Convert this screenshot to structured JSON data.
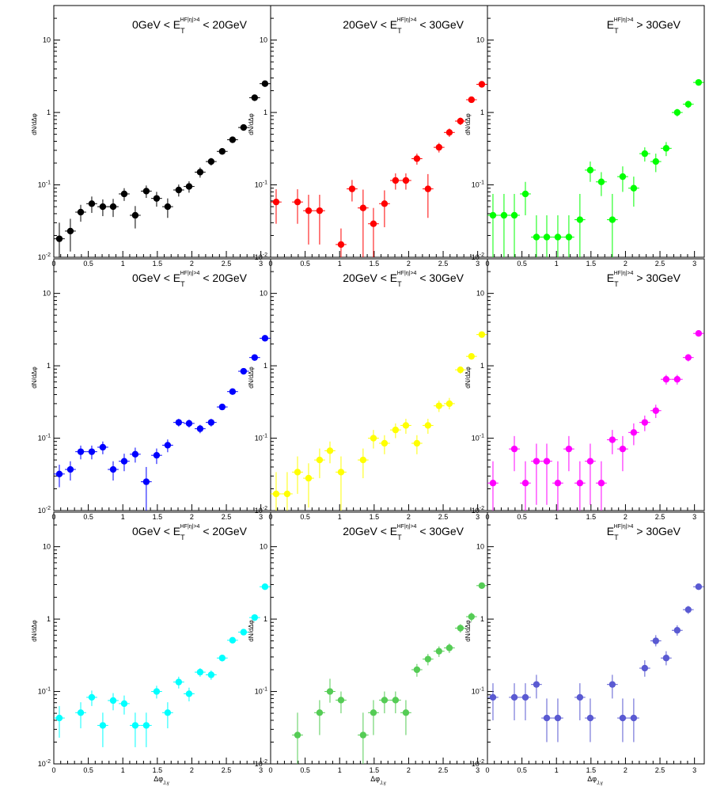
{
  "chart_data": [
    {
      "type": "scatter",
      "title": {
        "prefix": "0GeV < E",
        "sub": "T",
        "sup": "HF|η|>4",
        "suffix": " < 20GeV"
      },
      "ylabel": "dN/dΔφ",
      "xlabel": "",
      "x_sub": "",
      "ylim": [
        0.01,
        30
      ],
      "xlim": [
        0,
        3.14159
      ],
      "log_y": true,
      "color": "#000000",
      "series": [
        {
          "x": [
            0.08,
            0.24,
            0.39,
            0.55,
            0.71,
            0.86,
            1.02,
            1.18,
            1.34,
            1.49,
            1.65,
            1.81,
            1.96,
            2.12,
            2.28,
            2.44,
            2.59,
            2.75,
            2.91,
            3.06
          ],
          "y": [
            0.018,
            0.023,
            0.042,
            0.055,
            0.05,
            0.05,
            0.075,
            0.038,
            0.082,
            0.065,
            0.05,
            0.085,
            0.095,
            0.15,
            0.21,
            0.29,
            0.42,
            0.62,
            1.6,
            2.5
          ],
          "lo": [
            0.006,
            0.012,
            0.031,
            0.041,
            0.037,
            0.036,
            0.06,
            0.025,
            0.066,
            0.05,
            0.035,
            0.069,
            0.078,
            0.126,
            0.185,
            0.263,
            0.39,
            0.58,
            1.5,
            2.35
          ],
          "hi": [
            0.03,
            0.034,
            0.053,
            0.069,
            0.063,
            0.064,
            0.09,
            0.051,
            0.098,
            0.08,
            0.065,
            0.101,
            0.112,
            0.174,
            0.235,
            0.317,
            0.45,
            0.66,
            1.7,
            2.65
          ]
        }
      ]
    },
    {
      "type": "scatter",
      "title": {
        "prefix": "20GeV < E",
        "sub": "T",
        "sup": "HF|η|>4",
        "suffix": " < 30GeV"
      },
      "ylabel": "dN/dΔφ",
      "xlabel": "",
      "x_sub": "",
      "ylim": [
        0.01,
        30
      ],
      "xlim": [
        0,
        3.14159
      ],
      "log_y": true,
      "color": "#ff0000",
      "series": [
        {
          "x": [
            0.08,
            0.39,
            0.55,
            0.71,
            1.02,
            1.18,
            1.34,
            1.49,
            1.65,
            1.81,
            1.96,
            2.12,
            2.28,
            2.44,
            2.59,
            2.75,
            2.91,
            3.06
          ],
          "y": [
            0.058,
            0.058,
            0.044,
            0.044,
            0.015,
            0.088,
            0.048,
            0.029,
            0.055,
            0.115,
            0.115,
            0.23,
            0.088,
            0.33,
            0.53,
            0.76,
            1.5,
            2.45
          ],
          "lo": [
            0.029,
            0.029,
            0.015,
            0.015,
            0.005,
            0.059,
            0.01,
            0.01,
            0.026,
            0.086,
            0.086,
            0.19,
            0.035,
            0.28,
            0.46,
            0.67,
            1.38,
            2.3
          ],
          "hi": [
            0.087,
            0.087,
            0.073,
            0.073,
            0.025,
            0.117,
            0.086,
            0.048,
            0.084,
            0.144,
            0.144,
            0.27,
            0.141,
            0.38,
            0.6,
            0.85,
            1.62,
            2.6
          ]
        }
      ]
    },
    {
      "type": "scatter",
      "title": {
        "prefix": "E",
        "sub": "T",
        "sup": "HF|η|>4",
        "suffix": " > 30GeV"
      },
      "ylabel": "dN/dΔφ",
      "xlabel": "",
      "x_sub": "",
      "ylim": [
        0.01,
        30
      ],
      "xlim": [
        0,
        3.14159
      ],
      "log_y": true,
      "color": "#00ff00",
      "series": [
        {
          "x": [
            0.08,
            0.24,
            0.39,
            0.55,
            0.71,
            0.86,
            1.02,
            1.18,
            1.34,
            1.49,
            1.65,
            1.81,
            1.96,
            2.12,
            2.28,
            2.44,
            2.59,
            2.75,
            2.91,
            3.06
          ],
          "y": [
            0.038,
            0.038,
            0.038,
            0.075,
            0.019,
            0.019,
            0.019,
            0.019,
            0.033,
            0.16,
            0.11,
            0.033,
            0.13,
            0.09,
            0.27,
            0.21,
            0.32,
            1.0,
            1.3,
            2.6
          ],
          "lo": [
            0.01,
            0.01,
            0.01,
            0.038,
            0.005,
            0.005,
            0.005,
            0.005,
            0.01,
            0.11,
            0.07,
            0.01,
            0.08,
            0.05,
            0.21,
            0.15,
            0.25,
            0.88,
            1.15,
            2.4
          ],
          "hi": [
            0.075,
            0.075,
            0.075,
            0.11,
            0.038,
            0.038,
            0.038,
            0.038,
            0.075,
            0.21,
            0.15,
            0.075,
            0.18,
            0.13,
            0.33,
            0.27,
            0.39,
            1.12,
            1.45,
            2.8
          ]
        }
      ]
    },
    {
      "type": "scatter",
      "title": {
        "prefix": "0GeV < E",
        "sub": "T",
        "sup": "HF|η|>4",
        "suffix": " < 20GeV"
      },
      "ylabel": "dN/dΔφ",
      "xlabel": "",
      "x_sub": "",
      "ylim": [
        0.01,
        30
      ],
      "xlim": [
        0,
        3.14159
      ],
      "log_y": true,
      "color": "#0000ff",
      "series": [
        {
          "x": [
            0.08,
            0.24,
            0.39,
            0.55,
            0.71,
            0.86,
            1.02,
            1.18,
            1.34,
            1.49,
            1.65,
            1.81,
            1.96,
            2.12,
            2.28,
            2.44,
            2.59,
            2.75,
            2.91,
            3.06
          ],
          "y": [
            0.032,
            0.037,
            0.065,
            0.065,
            0.075,
            0.037,
            0.048,
            0.06,
            0.025,
            0.058,
            0.08,
            0.165,
            0.16,
            0.135,
            0.165,
            0.27,
            0.44,
            0.84,
            1.3,
            2.4
          ],
          "lo": [
            0.021,
            0.026,
            0.051,
            0.051,
            0.06,
            0.026,
            0.035,
            0.046,
            0.01,
            0.044,
            0.064,
            0.145,
            0.14,
            0.117,
            0.145,
            0.245,
            0.4,
            0.78,
            1.2,
            2.25
          ],
          "hi": [
            0.043,
            0.048,
            0.079,
            0.079,
            0.09,
            0.048,
            0.061,
            0.074,
            0.04,
            0.072,
            0.096,
            0.185,
            0.18,
            0.153,
            0.185,
            0.295,
            0.48,
            0.9,
            1.4,
            2.55
          ]
        }
      ]
    },
    {
      "type": "scatter",
      "title": {
        "prefix": "20GeV < E",
        "sub": "T",
        "sup": "HF|η|>4",
        "suffix": " < 30GeV"
      },
      "ylabel": "dN/dΔφ",
      "xlabel": "",
      "x_sub": "",
      "ylim": [
        0.01,
        30
      ],
      "xlim": [
        0,
        3.14159
      ],
      "log_y": true,
      "color": "#ffff00",
      "series": [
        {
          "x": [
            0.08,
            0.24,
            0.39,
            0.55,
            0.71,
            0.86,
            1.02,
            1.34,
            1.49,
            1.65,
            1.81,
            1.96,
            2.12,
            2.28,
            2.44,
            2.59,
            2.75,
            2.91,
            3.06
          ],
          "y": [
            0.017,
            0.017,
            0.034,
            0.028,
            0.05,
            0.067,
            0.034,
            0.05,
            0.1,
            0.085,
            0.13,
            0.15,
            0.085,
            0.15,
            0.28,
            0.3,
            0.88,
            1.35,
            2.7
          ],
          "lo": [
            0.006,
            0.006,
            0.017,
            0.011,
            0.028,
            0.045,
            0.01,
            0.028,
            0.072,
            0.06,
            0.1,
            0.115,
            0.06,
            0.115,
            0.23,
            0.25,
            0.78,
            1.22,
            2.5
          ],
          "hi": [
            0.034,
            0.034,
            0.056,
            0.045,
            0.072,
            0.09,
            0.056,
            0.072,
            0.13,
            0.11,
            0.16,
            0.185,
            0.11,
            0.185,
            0.33,
            0.36,
            0.98,
            1.48,
            2.9
          ]
        }
      ]
    },
    {
      "type": "scatter",
      "title": {
        "prefix": "E",
        "sub": "T",
        "sup": "HF|η|>4",
        "suffix": " > 30GeV"
      },
      "ylabel": "dN/dΔφ",
      "xlabel": "",
      "x_sub": "",
      "ylim": [
        0.01,
        30
      ],
      "xlim": [
        0,
        3.14159
      ],
      "log_y": true,
      "color": "#ff00ff",
      "series": [
        {
          "x": [
            0.08,
            0.39,
            0.55,
            0.71,
            0.86,
            1.02,
            1.18,
            1.34,
            1.49,
            1.65,
            1.81,
            1.96,
            2.12,
            2.28,
            2.44,
            2.59,
            2.75,
            2.91,
            3.06
          ],
          "y": [
            0.024,
            0.071,
            0.024,
            0.048,
            0.048,
            0.024,
            0.071,
            0.024,
            0.048,
            0.024,
            0.095,
            0.071,
            0.12,
            0.165,
            0.24,
            0.65,
            0.65,
            1.3,
            2.8
          ],
          "lo": [
            0.005,
            0.035,
            0.005,
            0.012,
            0.012,
            0.005,
            0.035,
            0.005,
            0.012,
            0.005,
            0.06,
            0.035,
            0.08,
            0.125,
            0.19,
            0.55,
            0.55,
            1.15,
            2.6
          ],
          "hi": [
            0.048,
            0.107,
            0.048,
            0.084,
            0.084,
            0.048,
            0.107,
            0.048,
            0.084,
            0.048,
            0.13,
            0.107,
            0.16,
            0.205,
            0.29,
            0.75,
            0.75,
            1.45,
            3.0
          ]
        }
      ]
    },
    {
      "type": "scatter",
      "title": {
        "prefix": "0GeV < E",
        "sub": "T",
        "sup": "HF|η|>4",
        "suffix": " < 20GeV"
      },
      "ylabel": "dN/dΔφ",
      "xlabel": "Δφ",
      "x_sub": "J,γ",
      "ylim": [
        0.01,
        30
      ],
      "xlim": [
        0,
        3.14159
      ],
      "log_y": true,
      "color": "#00ffff",
      "series": [
        {
          "x": [
            0.08,
            0.39,
            0.55,
            0.71,
            0.86,
            1.02,
            1.18,
            1.34,
            1.49,
            1.65,
            1.81,
            1.96,
            2.12,
            2.28,
            2.44,
            2.59,
            2.75,
            2.91,
            3.06
          ],
          "y": [
            0.043,
            0.051,
            0.083,
            0.034,
            0.075,
            0.068,
            0.034,
            0.034,
            0.1,
            0.051,
            0.135,
            0.093,
            0.185,
            0.17,
            0.29,
            0.51,
            0.66,
            1.05,
            2.8
          ],
          "lo": [
            0.023,
            0.031,
            0.063,
            0.017,
            0.055,
            0.048,
            0.017,
            0.017,
            0.08,
            0.031,
            0.11,
            0.073,
            0.16,
            0.145,
            0.26,
            0.47,
            0.61,
            0.97,
            2.6
          ],
          "hi": [
            0.063,
            0.071,
            0.103,
            0.051,
            0.095,
            0.088,
            0.051,
            0.051,
            0.12,
            0.071,
            0.16,
            0.113,
            0.21,
            0.195,
            0.32,
            0.55,
            0.71,
            1.13,
            3.0
          ]
        }
      ]
    },
    {
      "type": "scatter",
      "title": {
        "prefix": "20GeV < E",
        "sub": "T",
        "sup": "HF|η|>4",
        "suffix": " < 30GeV"
      },
      "ylabel": "dN/dΔφ",
      "xlabel": "Δφ",
      "x_sub": "J,γ",
      "ylim": [
        0.01,
        30
      ],
      "xlim": [
        0,
        3.14159
      ],
      "log_y": true,
      "color": "#55cc55",
      "series": [
        {
          "x": [
            0.39,
            0.71,
            0.86,
            1.02,
            1.34,
            1.49,
            1.65,
            1.81,
            1.96,
            2.12,
            2.28,
            2.44,
            2.59,
            2.75,
            2.91,
            3.06
          ],
          "y": [
            0.025,
            0.051,
            0.1,
            0.076,
            0.025,
            0.051,
            0.076,
            0.076,
            0.051,
            0.2,
            0.28,
            0.36,
            0.4,
            0.75,
            1.08,
            2.9
          ],
          "lo": [
            0.01,
            0.025,
            0.07,
            0.05,
            0.01,
            0.025,
            0.05,
            0.05,
            0.025,
            0.16,
            0.23,
            0.3,
            0.34,
            0.65,
            0.93,
            2.7
          ],
          "hi": [
            0.051,
            0.076,
            0.15,
            0.1,
            0.051,
            0.076,
            0.1,
            0.1,
            0.076,
            0.24,
            0.33,
            0.42,
            0.46,
            0.85,
            1.23,
            3.1
          ]
        }
      ]
    },
    {
      "type": "scatter",
      "title": {
        "prefix": "E",
        "sub": "T",
        "sup": "HF|η|>4",
        "suffix": " > 30GeV"
      },
      "ylabel": "dN/dΔφ",
      "xlabel": "Δφ",
      "x_sub": "J,γ",
      "ylim": [
        0.01,
        30
      ],
      "xlim": [
        0,
        3.14159
      ],
      "log_y": true,
      "color": "#5a5ad2",
      "series": [
        {
          "x": [
            0.08,
            0.39,
            0.55,
            0.71,
            0.86,
            1.02,
            1.34,
            1.49,
            1.81,
            1.96,
            2.12,
            2.28,
            2.44,
            2.59,
            2.75,
            2.91,
            3.06
          ],
          "y": [
            0.083,
            0.083,
            0.083,
            0.125,
            0.043,
            0.043,
            0.083,
            0.043,
            0.125,
            0.043,
            0.043,
            0.21,
            0.5,
            0.29,
            0.7,
            1.35,
            2.8
          ],
          "lo": [
            0.04,
            0.04,
            0.04,
            0.08,
            0.02,
            0.02,
            0.04,
            0.02,
            0.08,
            0.02,
            0.02,
            0.16,
            0.42,
            0.23,
            0.59,
            1.18,
            2.55
          ],
          "hi": [
            0.13,
            0.13,
            0.13,
            0.17,
            0.08,
            0.08,
            0.13,
            0.08,
            0.17,
            0.08,
            0.08,
            0.27,
            0.6,
            0.36,
            0.82,
            1.52,
            3.05
          ]
        }
      ]
    }
  ]
}
